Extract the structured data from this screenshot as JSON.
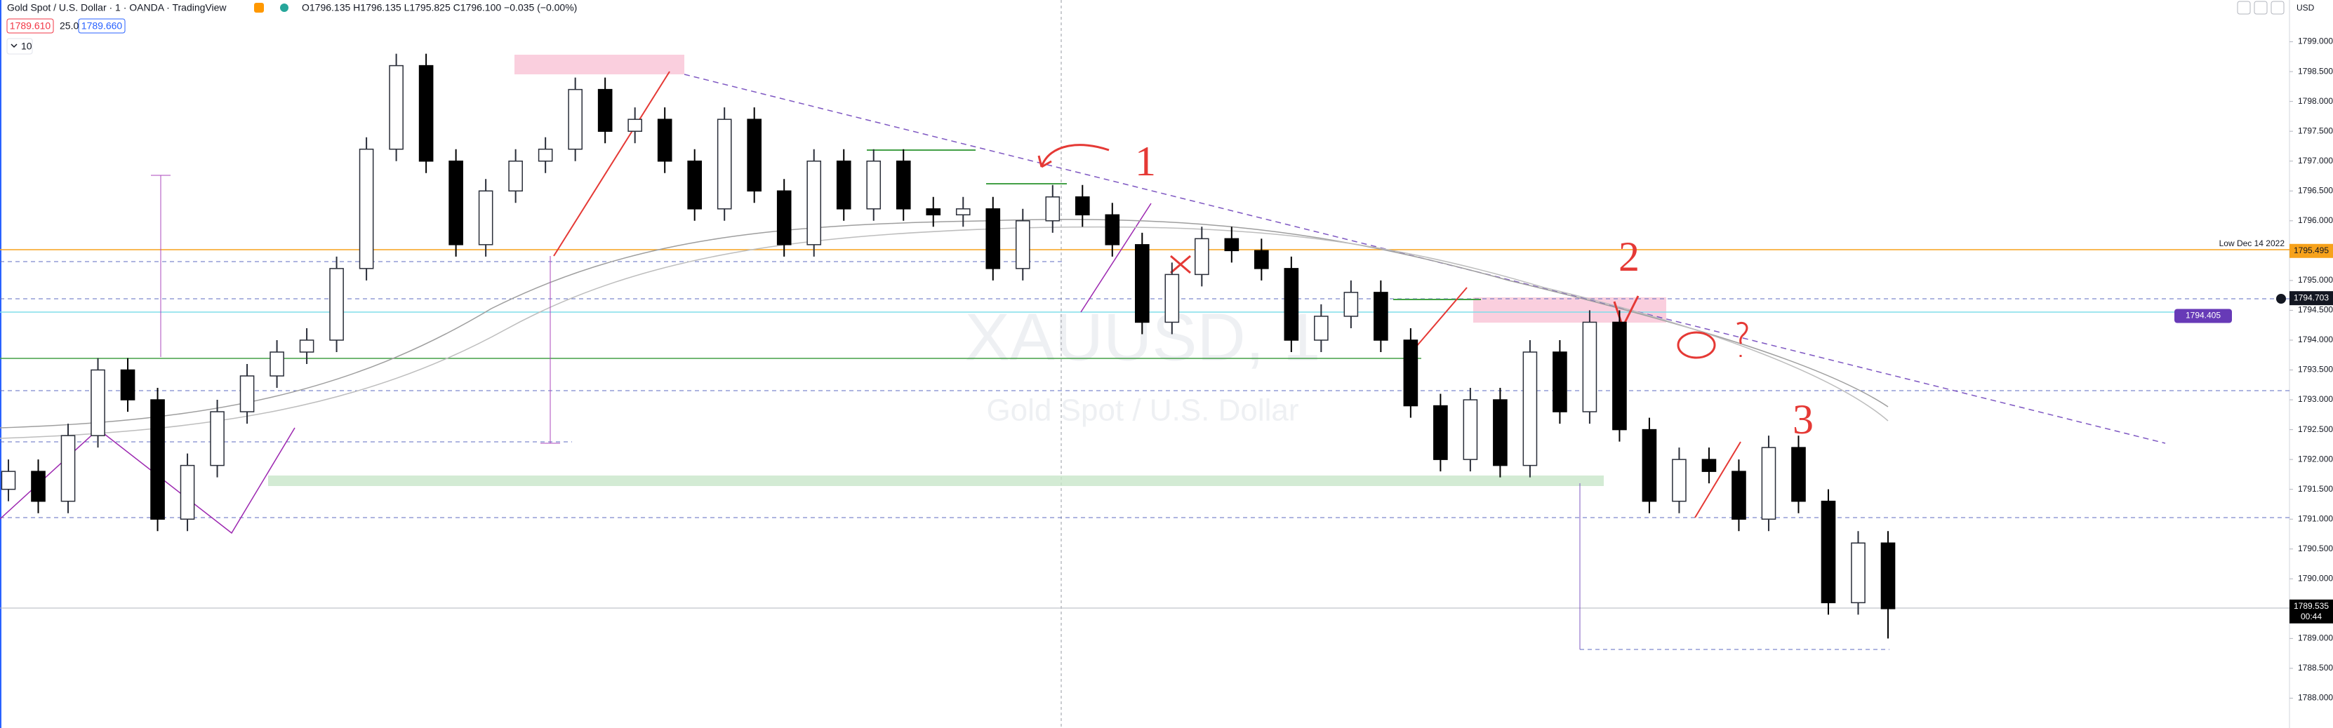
{
  "chart_data": {
    "type": "candlestick",
    "title": "Gold Spot / U.S. Dollar · 1 · OANDA · TradingView",
    "ohlc": "O1796.135 H1796.135 L1795.825 C1796.100 −0.035 (−0.00%)",
    "bid": "1789.610",
    "spread": "25.0",
    "ask": "1789.660",
    "indicators": "10",
    "currency": "USD",
    "watermark": "XAUUSD, 1",
    "watermark_subtitle": "Gold Spot / U.S. Dollar",
    "line_note": "Low Dec 14 2022",
    "countdown": "00:44",
    "annotations": [
      "1",
      "2",
      "3"
    ],
    "up_color": "#2a2e39",
    "down_color": "#000000",
    "grid": false,
    "ylim": [
      1787.5,
      1799.7
    ],
    "yticks": [
      {
        "value": 1788.0,
        "label": "1788.000"
      },
      {
        "value": 1788.5,
        "label": "1788.500"
      },
      {
        "value": 1789.0,
        "label": "1789.000"
      },
      {
        "value": 1789.5,
        "label": "1789.500"
      },
      {
        "value": 1790.0,
        "label": "1790.000"
      },
      {
        "value": 1790.5,
        "label": "1790.500"
      },
      {
        "value": 1791.0,
        "label": "1791.000"
      },
      {
        "value": 1791.5,
        "label": "1791.500"
      },
      {
        "value": 1792.0,
        "label": "1792.000"
      },
      {
        "value": 1792.5,
        "label": "1792.500"
      },
      {
        "value": 1793.0,
        "label": "1793.000"
      },
      {
        "value": 1793.5,
        "label": "1793.500"
      },
      {
        "value": 1794.0,
        "label": "1794.000"
      },
      {
        "value": 1794.5,
        "label": "1794.500"
      },
      {
        "value": 1795.0,
        "label": "1795.000"
      },
      {
        "value": 1795.5,
        "label": "1795.500"
      },
      {
        "value": 1796.0,
        "label": "1796.000"
      },
      {
        "value": 1796.5,
        "label": "1796.500"
      },
      {
        "value": 1797.0,
        "label": "1797.000"
      },
      {
        "value": 1797.5,
        "label": "1797.500"
      },
      {
        "value": 1798.0,
        "label": "1798.000"
      },
      {
        "value": 1798.5,
        "label": "1798.500"
      },
      {
        "value": 1799.0,
        "label": "1799.000"
      }
    ],
    "price_labels": [
      {
        "value": 1795.495,
        "label": "1795.495",
        "color": "#f7a21b"
      },
      {
        "value": 1794.703,
        "label": "1794.703",
        "color": "#131722"
      },
      {
        "value": 1794.405,
        "label": "1794.405",
        "color": "#673ab7"
      },
      {
        "value": 1789.535,
        "label": "1789.535",
        "color": "#000000"
      }
    ],
    "open": [
      1791.5,
      1791.8,
      1791.3,
      1792.4,
      1793.5,
      1793.0,
      1791.0,
      1791.9,
      1792.8,
      1793.4,
      1793.8,
      1794.0,
      1795.2,
      1797.2,
      1798.6,
      1797.0,
      1795.6,
      1796.5,
      1797.0,
      1797.2,
      1798.2,
      1797.5,
      1797.7,
      1797.0,
      1796.2,
      1797.7,
      1796.5,
      1795.6,
      1797.0,
      1796.2,
      1797.0,
      1796.2,
      1796.1,
      1796.2,
      1795.2,
      1796.0,
      1796.4,
      1796.1,
      1795.6,
      1794.3,
      1795.1,
      1795.7,
      1795.5,
      1795.2,
      1794.0,
      1794.4,
      1794.8,
      1794.0,
      1792.9,
      1792.0,
      1793.0,
      1791.9,
      1793.8,
      1792.8,
      1794.3,
      1792.5,
      1791.3,
      1792.0,
      1791.8,
      1791.0,
      1792.2,
      1791.3,
      1789.6,
      1790.6
    ],
    "high": [
      1792.0,
      1792.0,
      1792.6,
      1793.7,
      1793.7,
      1793.2,
      1792.1,
      1793.0,
      1793.6,
      1794.0,
      1794.2,
      1795.4,
      1797.4,
      1798.8,
      1798.8,
      1797.2,
      1796.7,
      1797.2,
      1797.4,
      1798.4,
      1798.4,
      1797.9,
      1797.9,
      1797.2,
      1797.9,
      1797.9,
      1796.7,
      1797.2,
      1797.2,
      1797.2,
      1797.2,
      1796.4,
      1796.4,
      1796.4,
      1796.2,
      1796.6,
      1796.6,
      1796.3,
      1795.8,
      1795.3,
      1795.9,
      1795.9,
      1795.7,
      1795.4,
      1794.6,
      1795.0,
      1795.0,
      1794.2,
      1793.1,
      1793.2,
      1793.2,
      1794.0,
      1794.0,
      1794.5,
      1794.5,
      1792.7,
      1792.2,
      1792.2,
      1792.0,
      1792.4,
      1792.4,
      1791.5,
      1790.8,
      1790.8
    ],
    "low": [
      1791.3,
      1791.1,
      1791.1,
      1792.2,
      1792.8,
      1790.8,
      1790.8,
      1791.7,
      1792.6,
      1793.2,
      1793.6,
      1793.8,
      1795.0,
      1797.0,
      1796.8,
      1795.4,
      1795.4,
      1796.3,
      1796.8,
      1797.0,
      1797.3,
      1797.3,
      1796.8,
      1796.0,
      1796.0,
      1796.3,
      1795.4,
      1795.4,
      1796.0,
      1796.0,
      1796.0,
      1795.9,
      1795.9,
      1795.0,
      1795.0,
      1795.8,
      1795.9,
      1795.4,
      1794.1,
      1794.1,
      1794.9,
      1795.3,
      1795.0,
      1793.8,
      1793.8,
      1794.2,
      1793.8,
      1792.7,
      1791.8,
      1791.8,
      1791.7,
      1791.7,
      1792.6,
      1792.6,
      1792.3,
      1791.1,
      1791.1,
      1791.6,
      1790.8,
      1790.8,
      1791.1,
      1789.4,
      1789.4,
      1789.0
    ],
    "close": [
      1791.8,
      1791.3,
      1792.4,
      1793.5,
      1793.0,
      1791.0,
      1791.9,
      1792.8,
      1793.4,
      1793.8,
      1794.0,
      1795.2,
      1797.2,
      1798.6,
      1797.0,
      1795.6,
      1796.5,
      1797.0,
      1797.2,
      1798.2,
      1797.5,
      1797.7,
      1797.0,
      1796.2,
      1797.7,
      1796.5,
      1795.6,
      1797.0,
      1796.2,
      1797.0,
      1796.2,
      1796.1,
      1796.2,
      1795.2,
      1796.0,
      1796.4,
      1796.1,
      1795.6,
      1794.3,
      1795.1,
      1795.7,
      1795.5,
      1795.2,
      1794.0,
      1794.4,
      1794.8,
      1794.0,
      1792.9,
      1792.0,
      1793.0,
      1791.9,
      1793.8,
      1792.8,
      1794.3,
      1792.5,
      1791.3,
      1792.0,
      1791.8,
      1791.0,
      1792.2,
      1791.3,
      1789.6,
      1790.6,
      1789.5
    ]
  }
}
